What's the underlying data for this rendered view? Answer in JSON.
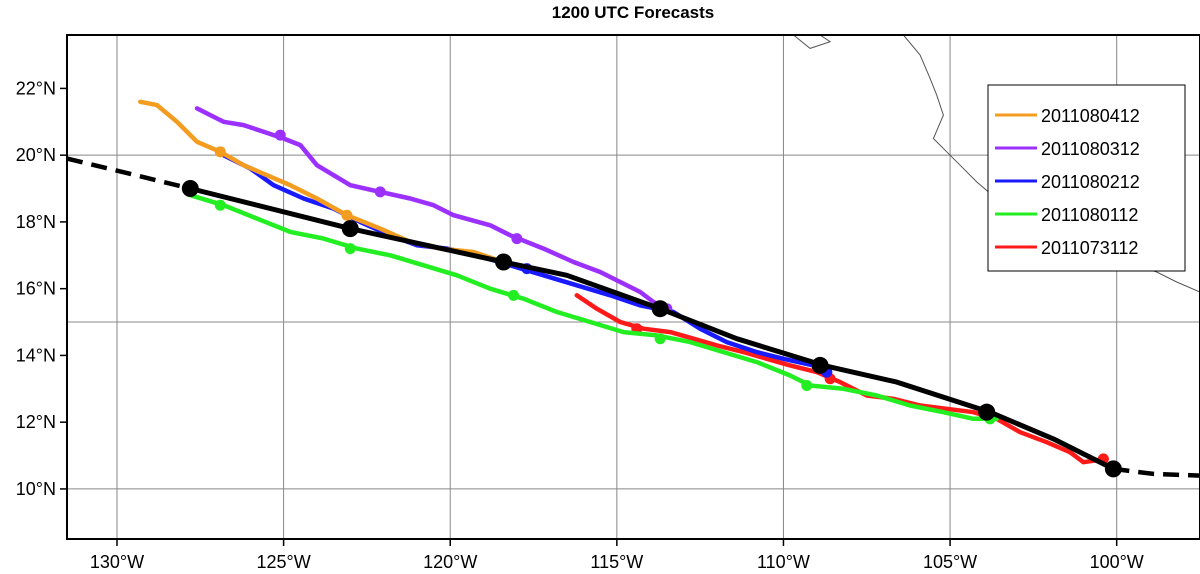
{
  "chart_data": {
    "type": "line",
    "title": "1200 UTC Forecasts",
    "xlabel": "",
    "ylabel": "",
    "xlim": [
      -131.5,
      -97.5
    ],
    "ylim": [
      8.5,
      23.6
    ],
    "x_ticks": [
      -130,
      -125,
      -120,
      -115,
      -110,
      -105,
      -100
    ],
    "x_tick_labels": [
      "130°W",
      "125°W",
      "120°W",
      "115°W",
      "110°W",
      "105°W",
      "100°W"
    ],
    "y_ticks": [
      10,
      12,
      14,
      16,
      18,
      20,
      22
    ],
    "y_tick_labels": [
      "10°N",
      "12°N",
      "14°N",
      "16°N",
      "18°N",
      "20°N",
      "22°N"
    ],
    "grid": true,
    "grid_lon": [
      -130,
      -125,
      -120,
      -115,
      -110,
      -105,
      -100
    ],
    "grid_lat": [
      10,
      15,
      20
    ],
    "legend_position": "top-right",
    "coastline": [
      [
        [
          -109.7,
          23.6
        ],
        [
          -109.2,
          23.2
        ],
        [
          -108.6,
          23.4
        ],
        [
          -108.9,
          23.6
        ]
      ],
      [
        [
          -106.4,
          23.6
        ],
        [
          -105.9,
          23.0
        ],
        [
          -105.6,
          22.3
        ],
        [
          -105.4,
          21.8
        ],
        [
          -105.2,
          21.2
        ],
        [
          -105.5,
          20.5
        ],
        [
          -105.1,
          20.1
        ],
        [
          -104.7,
          19.7
        ],
        [
          -104.2,
          19.2
        ],
        [
          -103.5,
          18.6
        ],
        [
          -102.4,
          18.0
        ],
        [
          -101.7,
          17.5
        ],
        [
          -100.5,
          17.1
        ],
        [
          -99.7,
          16.8
        ],
        [
          -98.8,
          16.5
        ],
        [
          -98.2,
          16.2
        ],
        [
          -97.5,
          15.9
        ]
      ]
    ],
    "series": [
      {
        "name": "2011080412",
        "color": "#f39c1f",
        "points": [
          [
            -129.3,
            21.6
          ],
          [
            -128.8,
            21.5
          ],
          [
            -128.2,
            21.0
          ],
          [
            -127.6,
            20.4
          ],
          [
            -126.9,
            20.1
          ],
          [
            -126.2,
            19.7
          ],
          [
            -125.5,
            19.4
          ],
          [
            -124.8,
            19.1
          ],
          [
            -124.0,
            18.7
          ],
          [
            -123.1,
            18.2
          ],
          [
            -122.1,
            17.8
          ],
          [
            -121.2,
            17.4
          ],
          [
            -120.3,
            17.2
          ],
          [
            -119.3,
            17.1
          ],
          [
            -118.4,
            16.8
          ]
        ],
        "markers": [
          [
            -126.9,
            20.1
          ],
          [
            -123.1,
            18.2
          ],
          [
            -118.4,
            16.8
          ]
        ]
      },
      {
        "name": "2011080312",
        "color": "#9b30ff",
        "points": [
          [
            -127.6,
            21.4
          ],
          [
            -127.2,
            21.2
          ],
          [
            -126.8,
            21.0
          ],
          [
            -126.2,
            20.9
          ],
          [
            -125.6,
            20.7
          ],
          [
            -125.0,
            20.5
          ],
          [
            -124.5,
            20.3
          ],
          [
            -124.0,
            19.7
          ],
          [
            -123.5,
            19.4
          ],
          [
            -123.0,
            19.1
          ],
          [
            -122.1,
            18.9
          ],
          [
            -121.2,
            18.7
          ],
          [
            -120.5,
            18.5
          ],
          [
            -119.9,
            18.2
          ],
          [
            -118.8,
            17.9
          ],
          [
            -118.2,
            17.6
          ],
          [
            -117.2,
            17.2
          ],
          [
            -116.3,
            16.8
          ],
          [
            -115.5,
            16.5
          ],
          [
            -114.9,
            16.2
          ],
          [
            -114.3,
            15.9
          ],
          [
            -113.9,
            15.6
          ],
          [
            -113.5,
            15.4
          ]
        ],
        "markers": [
          [
            -125.1,
            20.6
          ],
          [
            -122.1,
            18.9
          ],
          [
            -118.0,
            17.5
          ],
          [
            -113.5,
            15.4
          ]
        ]
      },
      {
        "name": "2011080212",
        "color": "#1a1aff",
        "points": [
          [
            -126.8,
            20.0
          ],
          [
            -126.0,
            19.6
          ],
          [
            -125.3,
            19.1
          ],
          [
            -124.4,
            18.7
          ],
          [
            -123.5,
            18.4
          ],
          [
            -122.7,
            18.0
          ],
          [
            -121.8,
            17.6
          ],
          [
            -121.0,
            17.3
          ],
          [
            -120.1,
            17.2
          ],
          [
            -119.2,
            17.0
          ],
          [
            -118.2,
            16.7
          ],
          [
            -117.2,
            16.4
          ],
          [
            -116.2,
            16.1
          ],
          [
            -115.2,
            15.8
          ],
          [
            -114.3,
            15.5
          ],
          [
            -113.3,
            15.3
          ],
          [
            -112.5,
            14.8
          ],
          [
            -111.7,
            14.4
          ],
          [
            -110.8,
            14.1
          ],
          [
            -110.0,
            13.9
          ],
          [
            -109.1,
            13.7
          ],
          [
            -108.6,
            13.5
          ]
        ],
        "markers": [
          [
            -117.7,
            16.6
          ],
          [
            -113.6,
            15.4
          ],
          [
            -108.7,
            13.5
          ]
        ]
      },
      {
        "name": "2011080112",
        "color": "#22ee22",
        "points": [
          [
            -127.8,
            18.8
          ],
          [
            -126.8,
            18.5
          ],
          [
            -125.8,
            18.1
          ],
          [
            -124.8,
            17.7
          ],
          [
            -123.8,
            17.5
          ],
          [
            -122.8,
            17.2
          ],
          [
            -121.8,
            17.0
          ],
          [
            -120.8,
            16.7
          ],
          [
            -119.8,
            16.4
          ],
          [
            -118.8,
            16.0
          ],
          [
            -117.8,
            15.7
          ],
          [
            -116.8,
            15.3
          ],
          [
            -115.8,
            15.0
          ],
          [
            -114.8,
            14.7
          ],
          [
            -113.8,
            14.6
          ],
          [
            -112.8,
            14.4
          ],
          [
            -111.8,
            14.1
          ],
          [
            -110.8,
            13.8
          ],
          [
            -109.8,
            13.4
          ],
          [
            -109.2,
            13.1
          ],
          [
            -108.2,
            13.0
          ],
          [
            -107.2,
            12.8
          ],
          [
            -106.2,
            12.5
          ],
          [
            -105.2,
            12.3
          ],
          [
            -104.3,
            12.1
          ],
          [
            -103.6,
            12.1
          ]
        ],
        "markers": [
          [
            -126.9,
            18.5
          ],
          [
            -123.0,
            17.2
          ],
          [
            -118.1,
            15.8
          ],
          [
            -113.7,
            14.5
          ],
          [
            -109.3,
            13.1
          ],
          [
            -103.8,
            12.1
          ]
        ]
      },
      {
        "name": "2011073112",
        "color": "#ff1a1a",
        "points": [
          [
            -116.2,
            15.8
          ],
          [
            -115.6,
            15.4
          ],
          [
            -114.9,
            15.0
          ],
          [
            -114.2,
            14.8
          ],
          [
            -113.4,
            14.7
          ],
          [
            -112.7,
            14.5
          ],
          [
            -112.0,
            14.3
          ],
          [
            -111.2,
            14.1
          ],
          [
            -110.5,
            13.9
          ],
          [
            -109.8,
            13.7
          ],
          [
            -109.0,
            13.5
          ],
          [
            -108.3,
            13.2
          ],
          [
            -107.5,
            12.8
          ],
          [
            -106.7,
            12.7
          ],
          [
            -105.9,
            12.5
          ],
          [
            -105.1,
            12.4
          ],
          [
            -104.3,
            12.3
          ],
          [
            -103.6,
            12.1
          ],
          [
            -102.9,
            11.7
          ],
          [
            -102.1,
            11.4
          ],
          [
            -101.4,
            11.1
          ],
          [
            -101.0,
            10.8
          ],
          [
            -100.3,
            10.9
          ]
        ],
        "markers": [
          [
            -114.4,
            14.8
          ],
          [
            -108.6,
            13.3
          ],
          [
            -103.9,
            12.3
          ],
          [
            -100.4,
            10.9
          ]
        ]
      }
    ],
    "observed": {
      "color": "#000000",
      "dashed_before": [
        [
          -131.5,
          19.9
        ],
        [
          -127.8,
          19.0
        ]
      ],
      "points": [
        [
          -127.8,
          19.0
        ],
        [
          -123.0,
          17.8
        ],
        [
          -118.4,
          16.8
        ],
        [
          -116.5,
          16.4
        ],
        [
          -115.1,
          15.9
        ],
        [
          -113.7,
          15.4
        ],
        [
          -111.4,
          14.5
        ],
        [
          -108.8,
          13.7
        ],
        [
          -106.6,
          13.2
        ],
        [
          -103.8,
          12.3
        ],
        [
          -101.9,
          11.5
        ],
        [
          -100.1,
          10.6
        ]
      ],
      "dashed_after": [
        [
          -100.1,
          10.6
        ],
        [
          -98.9,
          10.45
        ],
        [
          -97.5,
          10.4
        ]
      ],
      "markers": [
        [
          -127.8,
          19.0
        ],
        [
          -123.0,
          17.8
        ],
        [
          -118.4,
          16.8
        ],
        [
          -113.7,
          15.4
        ],
        [
          -108.9,
          13.7
        ],
        [
          -103.9,
          12.3
        ],
        [
          -100.1,
          10.6
        ]
      ]
    }
  }
}
